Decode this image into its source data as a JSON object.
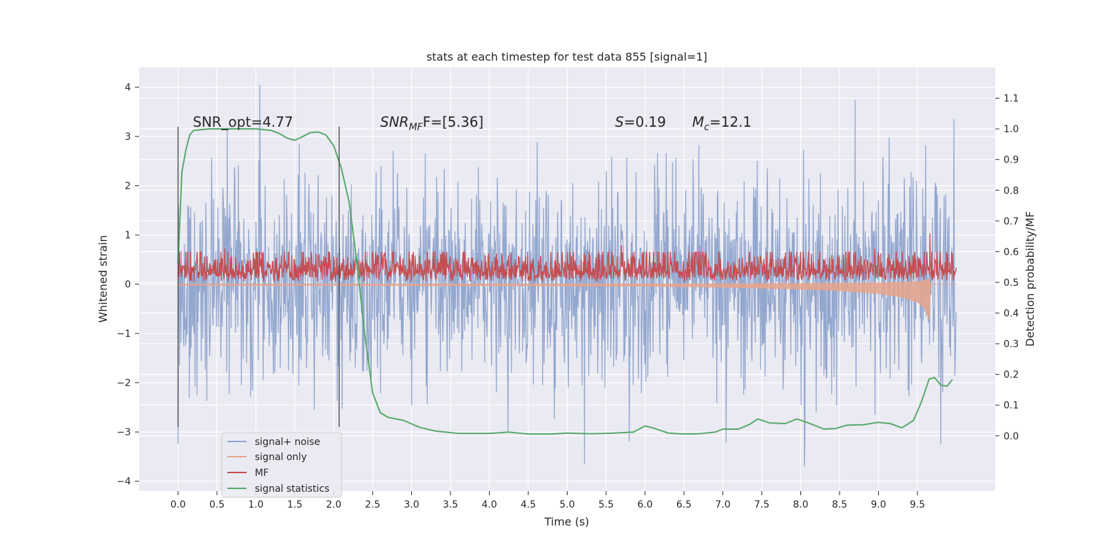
{
  "chart_data": {
    "type": "line",
    "title": "stats at each timestep for test data 855 [signal=1]",
    "xlabel": "Time (s)",
    "ylabel_left": "Whitened strain",
    "ylabel_right": "Detection probability/MF",
    "xlim": [
      -0.5,
      10.5
    ],
    "ylim_left": [
      -4.2,
      4.4
    ],
    "ylim_right": [
      -0.18,
      1.2
    ],
    "x_ticks": [
      0.0,
      0.5,
      1.0,
      1.5,
      2.0,
      2.5,
      3.0,
      3.5,
      4.0,
      4.5,
      5.0,
      5.5,
      6.0,
      6.5,
      7.0,
      7.5,
      8.0,
      8.5,
      9.0,
      9.5
    ],
    "x_tick_labels": [
      "0.0",
      "0.5",
      "1.0",
      "1.5",
      "2.0",
      "2.5",
      "3.0",
      "3.5",
      "4.0",
      "4.5",
      "5.0",
      "5.5",
      "6.0",
      "6.5",
      "7.0",
      "7.5",
      "8.0",
      "8.5",
      "9.0",
      "9.5"
    ],
    "y_left_ticks": [
      4,
      3,
      2,
      1,
      0,
      -1,
      -2,
      -3,
      -4
    ],
    "y_left_tick_labels": [
      "4",
      "3",
      "2",
      "1",
      "0",
      "−1",
      "−2",
      "−3",
      "−4"
    ],
    "y_right_ticks": [
      1.1,
      1.0,
      0.9,
      0.8,
      0.7,
      0.6,
      0.5,
      0.4,
      0.3,
      0.2,
      0.1,
      0.0
    ],
    "y_right_tick_labels": [
      "1.1",
      "1.0",
      "0.9",
      "0.8",
      "0.7",
      "0.6",
      "0.5",
      "0.4",
      "0.3",
      "0.2",
      "0.1",
      "0.0"
    ],
    "grid": true,
    "legend_placement": "lower-left",
    "annotations": {
      "snr_opt": "SNR_opt=4.77",
      "snr_mf_base": "SNR",
      "snr_mf_sub": "MF",
      "snr_mf_rest": "F=[5.36]",
      "s_base": "S",
      "s_rest": "=0.19",
      "mc_base": "M",
      "mc_sub": "c",
      "mc_rest": "=12.1"
    },
    "vertical_lines": [
      {
        "x": 0.0,
        "y0": -2.9,
        "y1": 3.2
      },
      {
        "x": 2.07,
        "y0": -2.9,
        "y1": 3.2
      }
    ],
    "series": [
      {
        "name": "signal+ noise",
        "axis": "left",
        "color": "#8ea3cc",
        "x_start": 0.0,
        "x_end": 10.0,
        "n_points": 1600,
        "approx_range": [
          -3.7,
          4.05
        ],
        "peaks": [
          {
            "x": 1.05,
            "y": 4.05
          },
          {
            "x": 8.7,
            "y": 3.75
          },
          {
            "x": 9.97,
            "y": 3.35
          },
          {
            "x": 5.22,
            "y": -3.65
          },
          {
            "x": 8.05,
            "y": -3.7
          },
          {
            "x": 9.8,
            "y": -3.25
          }
        ]
      },
      {
        "name": "signal only",
        "axis": "left",
        "color": "#e8a48b",
        "envelope": [
          [
            0.0,
            0.02
          ],
          [
            4.0,
            0.03
          ],
          [
            6.0,
            0.04
          ],
          [
            7.0,
            0.06
          ],
          [
            8.0,
            0.1
          ],
          [
            8.5,
            0.13
          ],
          [
            9.0,
            0.19
          ],
          [
            9.3,
            0.26
          ],
          [
            9.5,
            0.36
          ],
          [
            9.6,
            0.5
          ],
          [
            9.65,
            0.72
          ],
          [
            9.67,
            0.0
          ],
          [
            10.0,
            0.0
          ]
        ]
      },
      {
        "name": "MF",
        "axis": "right",
        "color": "#c44e52",
        "x_start": 0.0,
        "x_end": 10.0,
        "n_points": 1800,
        "baseline": 0.5,
        "approx_max": 0.66,
        "peaks": [
          {
            "x": 9.66,
            "y": 0.66
          },
          {
            "x": 5.7,
            "y": 0.62
          },
          {
            "x": 8.95,
            "y": 0.61
          },
          {
            "x": 0.6,
            "y": 0.61
          }
        ]
      },
      {
        "name": "signal statistics",
        "axis": "right",
        "color": "#55a868",
        "points": [
          [
            0.0,
            0.56
          ],
          [
            0.05,
            0.86
          ],
          [
            0.1,
            0.93
          ],
          [
            0.15,
            0.98
          ],
          [
            0.2,
            0.995
          ],
          [
            0.4,
            1.0
          ],
          [
            0.6,
            1.0
          ],
          [
            0.8,
            1.0
          ],
          [
            1.0,
            1.0
          ],
          [
            1.2,
            0.995
          ],
          [
            1.3,
            0.985
          ],
          [
            1.4,
            0.97
          ],
          [
            1.5,
            0.963
          ],
          [
            1.6,
            0.975
          ],
          [
            1.7,
            0.988
          ],
          [
            1.8,
            0.99
          ],
          [
            1.9,
            0.98
          ],
          [
            2.0,
            0.945
          ],
          [
            2.1,
            0.87
          ],
          [
            2.2,
            0.76
          ],
          [
            2.3,
            0.56
          ],
          [
            2.4,
            0.33
          ],
          [
            2.5,
            0.14
          ],
          [
            2.6,
            0.075
          ],
          [
            2.7,
            0.06
          ],
          [
            2.9,
            0.05
          ],
          [
            3.1,
            0.028
          ],
          [
            3.3,
            0.016
          ],
          [
            3.6,
            0.008
          ],
          [
            4.0,
            0.008
          ],
          [
            4.25,
            0.012
          ],
          [
            4.5,
            0.006
          ],
          [
            4.8,
            0.006
          ],
          [
            5.0,
            0.009
          ],
          [
            5.3,
            0.007
          ],
          [
            5.6,
            0.009
          ],
          [
            5.85,
            0.012
          ],
          [
            6.0,
            0.032
          ],
          [
            6.1,
            0.026
          ],
          [
            6.3,
            0.009
          ],
          [
            6.5,
            0.006
          ],
          [
            6.7,
            0.007
          ],
          [
            6.9,
            0.012
          ],
          [
            7.0,
            0.022
          ],
          [
            7.2,
            0.022
          ],
          [
            7.35,
            0.038
          ],
          [
            7.45,
            0.055
          ],
          [
            7.6,
            0.042
          ],
          [
            7.8,
            0.04
          ],
          [
            7.95,
            0.055
          ],
          [
            8.1,
            0.042
          ],
          [
            8.3,
            0.022
          ],
          [
            8.45,
            0.024
          ],
          [
            8.6,
            0.035
          ],
          [
            8.8,
            0.036
          ],
          [
            9.0,
            0.044
          ],
          [
            9.15,
            0.04
          ],
          [
            9.3,
            0.026
          ],
          [
            9.45,
            0.05
          ],
          [
            9.55,
            0.11
          ],
          [
            9.65,
            0.185
          ],
          [
            9.72,
            0.19
          ],
          [
            9.8,
            0.165
          ],
          [
            9.88,
            0.162
          ],
          [
            9.95,
            0.183
          ]
        ]
      }
    ]
  }
}
